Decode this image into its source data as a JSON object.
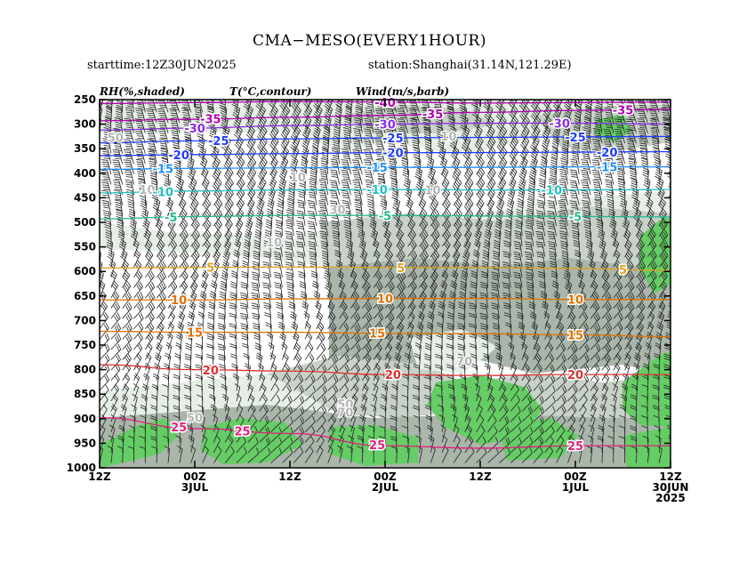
{
  "title": "CMA−MESO(EVERY1HOUR)",
  "starttime": "starttime:12Z30JUN2025",
  "station": "station:Shanghai(31.14N,121.29E)",
  "panel_headers": {
    "rh": "RH(%,shaded)",
    "temp": "T(°C,contour)",
    "wind": "Wind(m/s,barb)"
  },
  "colors": {
    "rh_light": "#e6efe6",
    "rh_mid": "#c8d2c8",
    "rh_dark": "#aab6aa",
    "rh_green": "#66cc66",
    "rh_contour": "#b4b4b4",
    "barb": "#111111"
  },
  "chart_data": {
    "type": "heatmap",
    "variables": [
      "RH(%,shaded)",
      "T(°C,contour)",
      "Wind(m/s,barb)"
    ],
    "y_axis": {
      "ticks": [
        250,
        300,
        350,
        400,
        450,
        500,
        550,
        600,
        650,
        700,
        750,
        800,
        850,
        900,
        950,
        1000
      ],
      "range": [
        1000,
        250
      ],
      "inverted": true
    },
    "x_axis": {
      "direction": "reversed",
      "ticks": [
        {
          "lines": [
            "12Z"
          ],
          "value": 72
        },
        {
          "lines": [
            "00Z",
            "3JUL"
          ],
          "value": 60
        },
        {
          "lines": [
            "12Z"
          ],
          "value": 48
        },
        {
          "lines": [
            "00Z",
            "2JUL"
          ],
          "value": 36
        },
        {
          "lines": [
            "12Z"
          ],
          "value": 24
        },
        {
          "lines": [
            "00Z",
            "1JUL"
          ],
          "value": 12
        },
        {
          "lines": [
            "12Z",
            "30JUN",
            "2025"
          ],
          "value": 0
        }
      ],
      "range": [
        72,
        0
      ]
    },
    "temperature_contours": [
      {
        "value": -40,
        "color": "#b000b0",
        "p": [
          258,
          256,
          254,
          255,
          257,
          256,
          255
        ],
        "labels": [
          {
            "x": 36,
            "text": "-40"
          }
        ]
      },
      {
        "value": -35,
        "color": "#b000b0",
        "p": [
          293,
          290,
          286,
          282,
          276,
          272,
          270
        ],
        "labels": [
          {
            "x": 58,
            "text": "-35"
          },
          {
            "x": 30,
            "text": "-35"
          },
          {
            "x": 6,
            "text": "-35"
          }
        ]
      },
      {
        "value": -30,
        "color": "#8a2be2",
        "p": [
          312,
          308,
          303,
          300,
          298,
          298,
          300
        ],
        "labels": [
          {
            "x": 60,
            "text": "-30"
          },
          {
            "x": 36,
            "text": "-30"
          },
          {
            "x": 14,
            "text": "-30"
          }
        ]
      },
      {
        "value": -25,
        "color": "#1e3cff",
        "p": [
          338,
          334,
          330,
          328,
          327,
          326,
          325
        ],
        "labels": [
          {
            "x": 57,
            "text": "-25"
          },
          {
            "x": 35,
            "text": "-25"
          },
          {
            "x": 12,
            "text": "-25"
          }
        ]
      },
      {
        "value": -20,
        "color": "#1e3cff",
        "p": [
          364,
          362,
          360,
          358,
          358,
          357,
          356
        ],
        "labels": [
          {
            "x": 62,
            "text": "-20"
          },
          {
            "x": 35,
            "text": "-20"
          },
          {
            "x": 8,
            "text": "-20"
          }
        ]
      },
      {
        "value": -15,
        "color": "#1e90ff",
        "p": [
          392,
          390,
          389,
          388,
          388,
          387,
          387
        ],
        "labels": [
          {
            "x": 64,
            "text": "-15"
          },
          {
            "x": 37,
            "text": "-15"
          },
          {
            "x": 8,
            "text": "-15"
          }
        ]
      },
      {
        "value": -10,
        "color": "#20c0c0",
        "p": [
          440,
          436,
          434,
          433,
          434,
          434,
          433
        ],
        "labels": [
          {
            "x": 64,
            "text": "-10"
          },
          {
            "x": 37,
            "text": "-10"
          },
          {
            "x": 15,
            "text": "-10"
          }
        ]
      },
      {
        "value": -5,
        "color": "#20b890",
        "p": [
          493,
          488,
          486,
          486,
          487,
          488,
          489
        ],
        "labels": [
          {
            "x": 63,
            "text": "-5"
          },
          {
            "x": 36,
            "text": "-5"
          },
          {
            "x": 12,
            "text": "-5"
          }
        ]
      },
      {
        "value": 5,
        "color": "#e0a020",
        "p": [
          593,
          592,
          591,
          592,
          592,
          594,
          598
        ],
        "labels": [
          {
            "x": 58,
            "text": "5"
          },
          {
            "x": 34,
            "text": "5"
          },
          {
            "x": 6,
            "text": "5"
          }
        ]
      },
      {
        "value": 10,
        "color": "#e07000",
        "p": [
          658,
          658,
          656,
          655,
          655,
          657,
          657
        ],
        "labels": [
          {
            "x": 62,
            "text": "10"
          },
          {
            "x": 36,
            "text": "10"
          },
          {
            "x": 12,
            "text": "10"
          }
        ]
      },
      {
        "value": 15,
        "color": "#e07000",
        "p": [
          722,
          724,
          724,
          726,
          727,
          729,
          733
        ],
        "labels": [
          {
            "x": 60,
            "text": "15"
          },
          {
            "x": 37,
            "text": "15"
          },
          {
            "x": 12,
            "text": "15"
          }
        ]
      },
      {
        "value": 20,
        "color": "#e03030",
        "p": [
          790,
          800,
          803,
          810,
          812,
          810,
          810
        ],
        "labels": [
          {
            "x": 58,
            "text": "20"
          },
          {
            "x": 35,
            "text": "20"
          },
          {
            "x": 12,
            "text": "20"
          }
        ]
      },
      {
        "value": 25,
        "color": "#e0207a",
        "p": [
          898,
          920,
          930,
          955,
          960,
          955,
          955
        ],
        "labels": [
          {
            "x": 62,
            "text": "25"
          },
          {
            "x": 54,
            "text": "25"
          },
          {
            "x": 37,
            "text": "25"
          },
          {
            "x": 12,
            "text": "25"
          }
        ]
      }
    ],
    "rh_labels": [
      {
        "x": 60,
        "p": 898,
        "text": "50"
      },
      {
        "x": 41,
        "p": 870,
        "text": "50"
      },
      {
        "x": 41,
        "p": 887,
        "text": "70"
      },
      {
        "x": 26,
        "p": 783,
        "text": "70"
      },
      {
        "x": 66,
        "p": 433,
        "text": "10"
      },
      {
        "x": 47,
        "p": 408,
        "text": "10"
      },
      {
        "x": 28,
        "p": 324,
        "text": "10"
      },
      {
        "x": 30,
        "p": 434,
        "text": "10"
      },
      {
        "x": 42,
        "p": 474,
        "text": "30"
      },
      {
        "x": 70,
        "p": 327,
        "text": "50"
      },
      {
        "x": 50,
        "p": 540,
        "text": "10"
      }
    ]
  }
}
